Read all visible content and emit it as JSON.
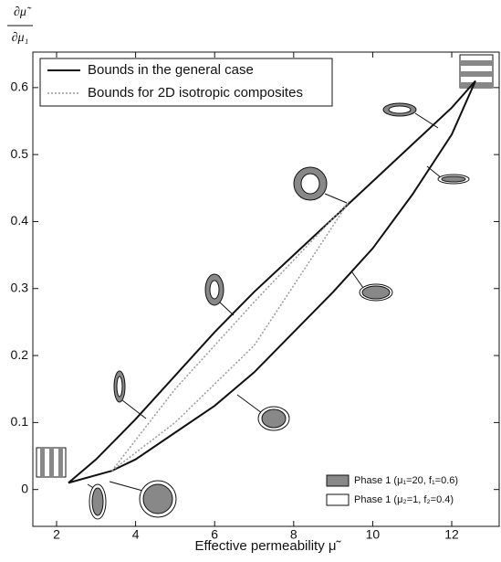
{
  "chart_data": {
    "type": "line",
    "y_label_numerator": "∂μ̃",
    "y_label_denominator": "∂μ₁",
    "x_label": "Effective permeability μ̃",
    "xlim": [
      1.4,
      13.2
    ],
    "ylim": [
      -0.055,
      0.653
    ],
    "xticks": [
      2,
      4,
      6,
      8,
      10,
      12
    ],
    "yticks": [
      0,
      0.1,
      0.2,
      0.3,
      0.4,
      0.5,
      0.6
    ],
    "series": [
      {
        "name": "Bounds in the general case",
        "color": "#111111",
        "dash": "none",
        "width": 2,
        "x": [
          2.3,
          3,
          4,
          5,
          6,
          7,
          8,
          9,
          10,
          11,
          12,
          12.6
        ],
        "values": [
          0.01,
          0.045,
          0.105,
          0.17,
          0.235,
          0.295,
          0.35,
          0.405,
          0.46,
          0.515,
          0.57,
          0.61
        ]
      },
      {
        "name": null,
        "color": "#111111",
        "dash": "none",
        "width": 2,
        "x": [
          2.3,
          3.4,
          4,
          5,
          6,
          7,
          8,
          9,
          10,
          11,
          12,
          12.6
        ],
        "values": [
          0.01,
          0.028,
          0.045,
          0.085,
          0.125,
          0.175,
          0.235,
          0.295,
          0.36,
          0.44,
          0.53,
          0.61
        ]
      },
      {
        "name": "Bounds for 2D isotropic composites",
        "color": "#999999",
        "dash": "2 2",
        "width": 1.5,
        "x": [
          3.4,
          5,
          7,
          9.4
        ],
        "values": [
          0.028,
          0.15,
          0.28,
          0.43
        ]
      },
      {
        "name": null,
        "color": "#999999",
        "dash": "2 2",
        "width": 1.5,
        "x": [
          3.4,
          5,
          7,
          9.4
        ],
        "values": [
          0.028,
          0.1,
          0.215,
          0.43
        ]
      }
    ],
    "phase_legend": [
      "Phase 1 (μ₁=20, f₁=0.6)",
      "Phase 1 (μ₂=1, f₂=0.4)"
    ]
  }
}
